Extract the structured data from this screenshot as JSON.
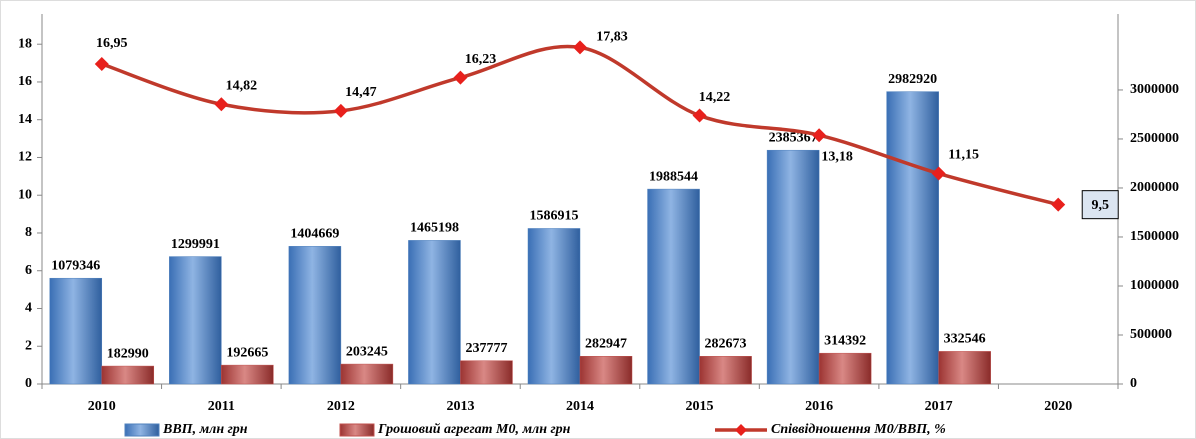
{
  "chart_data": {
    "type": "bar-line",
    "categories": [
      "2010",
      "2011",
      "2012",
      "2013",
      "2014",
      "2015",
      "2016",
      "2017",
      "2020"
    ],
    "series": [
      {
        "name": "ВВП, млн грн",
        "type": "bar",
        "axis": "y2",
        "color": "#4f81bd",
        "values": [
          1079346,
          1299991,
          1404669,
          1465198,
          1586915,
          1988544,
          2385367,
          2982920,
          null
        ]
      },
      {
        "name": "Грошовий агрегат М0, млн грн",
        "type": "bar",
        "axis": "y2",
        "color": "#c0504d",
        "values": [
          182990,
          192665,
          203245,
          237777,
          282947,
          282673,
          314392,
          332546,
          null
        ]
      },
      {
        "name": "Співвідношення М0/ВВП, %",
        "type": "line",
        "axis": "y",
        "color": "#c0392b",
        "values": [
          16.95,
          14.82,
          14.47,
          16.23,
          17.83,
          14.22,
          13.18,
          11.15,
          9.5
        ],
        "value_labels": [
          "16,95",
          "14,82",
          "14,47",
          "16,23",
          "17,83",
          "14,22",
          "13,18",
          "11,15",
          "9,5"
        ]
      }
    ],
    "ylim": [
      0,
      19.6
    ],
    "yticks": [
      0,
      2,
      4,
      6,
      8,
      10,
      12,
      14,
      16,
      18
    ],
    "y2lim": [
      0,
      3775000
    ],
    "y2ticks": [
      0,
      500000,
      1000000,
      1500000,
      2000000,
      2500000,
      3000000
    ],
    "legend": "bottom"
  }
}
